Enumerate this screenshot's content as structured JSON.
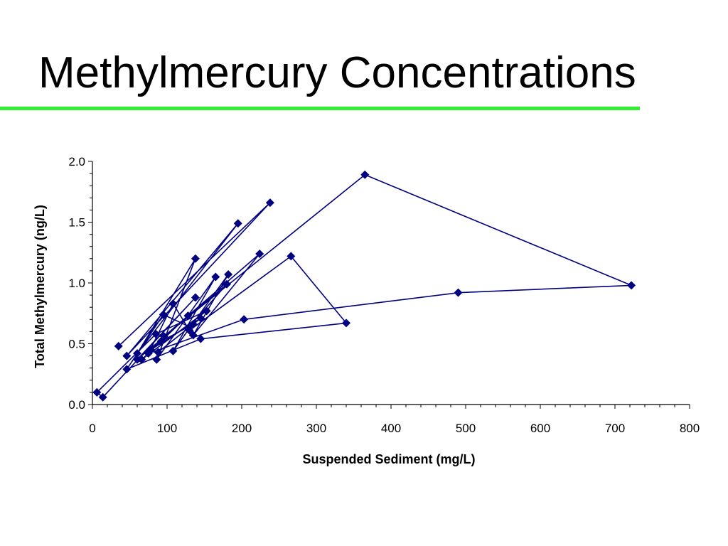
{
  "slide": {
    "title": "Methylmercury Concentrations",
    "rule_color": "#33ee33"
  },
  "chart_data": {
    "type": "line",
    "xlabel": "Suspended Sediment (mg/L)",
    "ylabel": "Total Methylmercury (ng/L)",
    "xlim": [
      0,
      800
    ],
    "ylim": [
      0,
      2.0
    ],
    "x_ticks": [
      "0",
      "100",
      "200",
      "300",
      "400",
      "500",
      "600",
      "700",
      "800"
    ],
    "y_ticks": [
      "0.0",
      "0.5",
      "1.0",
      "1.5",
      "2.0"
    ],
    "grid": false,
    "marker": "diamond",
    "color": "#000080",
    "points": [
      {
        "x": 35,
        "y": 0.48
      },
      {
        "x": 238,
        "y": 1.66
      },
      {
        "x": 46,
        "y": 0.4
      },
      {
        "x": 195,
        "y": 1.49
      },
      {
        "x": 60,
        "y": 0.42
      },
      {
        "x": 138,
        "y": 1.2
      },
      {
        "x": 86,
        "y": 0.37
      },
      {
        "x": 165,
        "y": 1.05
      },
      {
        "x": 108,
        "y": 0.44
      },
      {
        "x": 182,
        "y": 1.07
      },
      {
        "x": 135,
        "y": 0.57
      },
      {
        "x": 224,
        "y": 1.24
      },
      {
        "x": 96,
        "y": 0.56
      },
      {
        "x": 365,
        "y": 1.89
      },
      {
        "x": 722,
        "y": 0.98
      },
      {
        "x": 490,
        "y": 0.92
      },
      {
        "x": 203,
        "y": 0.7
      },
      {
        "x": 75,
        "y": 0.42
      },
      {
        "x": 108,
        "y": 0.83
      },
      {
        "x": 130,
        "y": 0.61
      },
      {
        "x": 266,
        "y": 1.22
      },
      {
        "x": 340,
        "y": 0.67
      },
      {
        "x": 145,
        "y": 0.54
      },
      {
        "x": 46,
        "y": 0.29
      },
      {
        "x": 95,
        "y": 0.74
      },
      {
        "x": 130,
        "y": 0.64
      },
      {
        "x": 180,
        "y": 0.99
      },
      {
        "x": 60,
        "y": 0.37
      },
      {
        "x": 138,
        "y": 0.88
      },
      {
        "x": 14,
        "y": 0.06
      },
      {
        "x": 6,
        "y": 0.1
      },
      {
        "x": 85,
        "y": 0.58
      },
      {
        "x": 153,
        "y": 0.77
      },
      {
        "x": 66,
        "y": 0.37
      },
      {
        "x": 128,
        "y": 0.73
      },
      {
        "x": 78,
        "y": 0.45
      },
      {
        "x": 145,
        "y": 0.71
      },
      {
        "x": 88,
        "y": 0.43
      },
      {
        "x": 135,
        "y": 0.66
      },
      {
        "x": 92,
        "y": 0.52
      }
    ]
  }
}
